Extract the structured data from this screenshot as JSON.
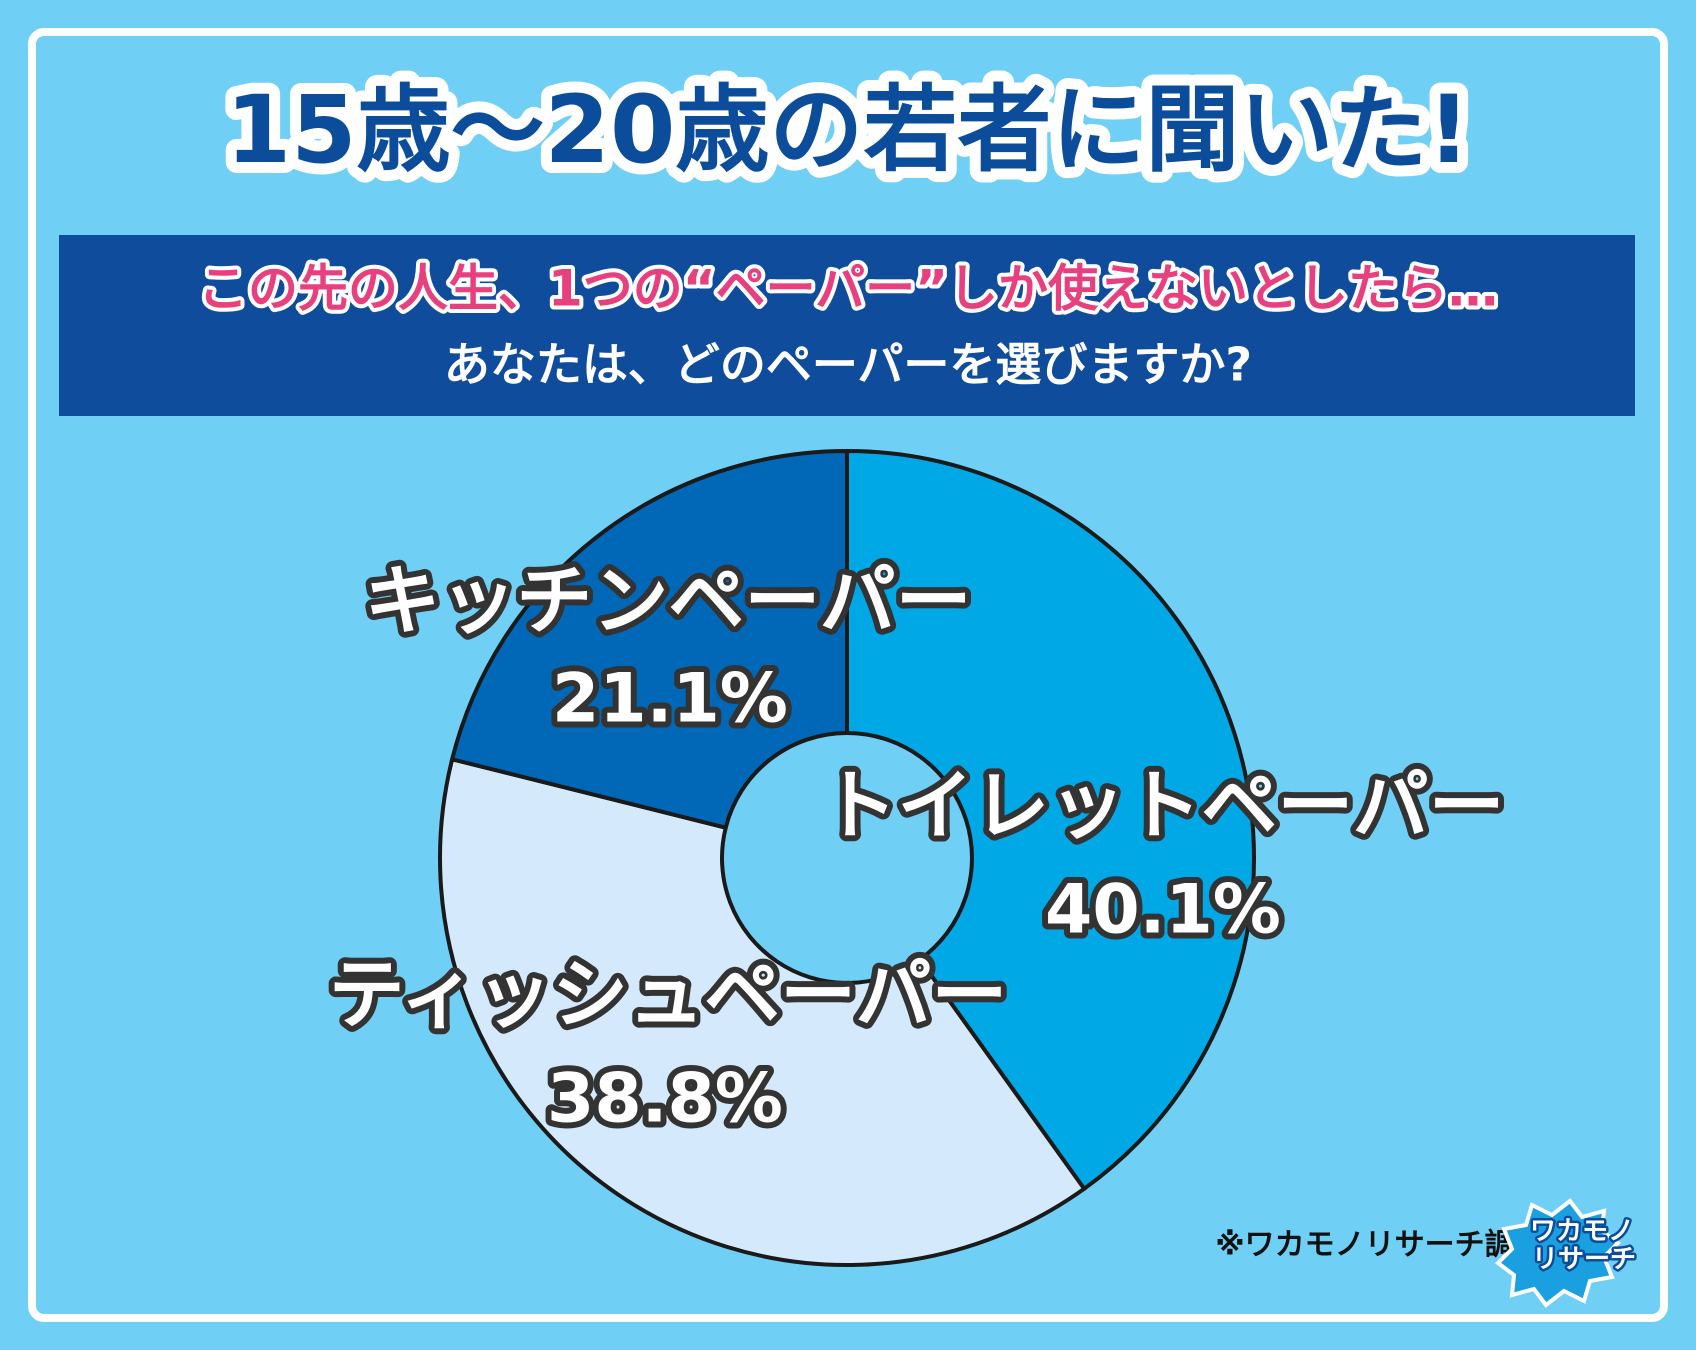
{
  "chart_data": {
    "type": "donut",
    "title": "15歳〜20歳の若者に聞いた!",
    "subtitle": [
      "この先の人生、1つの“ペーパー”しか使えないとしたら…",
      "あなたは、どのペーパーを選びますか?"
    ],
    "categories": [
      "トイレットペーパー",
      "ティッシュペーパー",
      "キッチンペーパー"
    ],
    "values": [
      40.1,
      38.8,
      21.1
    ],
    "value_labels": [
      "40.1%",
      "38.8%",
      "21.1%"
    ],
    "colors": [
      "#00a8e6",
      "#d4eafc",
      "#0068b7"
    ],
    "source": "※ワカモノリサーチ調べ"
  },
  "logo": [
    "ワカモノ",
    "リサーチ"
  ]
}
